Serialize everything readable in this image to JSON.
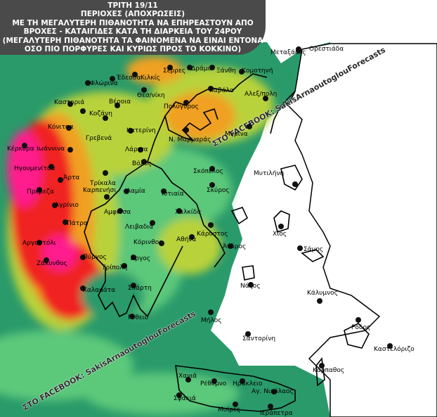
{
  "title": {
    "line1": "ΤΡΙΤΗ 19/11",
    "line2": "ΠΕΡΙΟΧΕΣ (ΑΠΟΧΡΩΣΕΙΣ)",
    "line3": "ΜΕ ΤΗ ΜΕΓΑΛΥΤΕΡΗ ΠΙΘΑΝΟΤΗΤΑ ΝΑ ΕΠΗΡΕΑΣΤΟΥΝ ΑΠΟ",
    "line4": "ΒΡΟΧΕΣ - ΚΑΤΑΙΓΙΔΕΣ ΚΑΤΑ ΤΗ ΔΙΑΡΚΕΙΑ ΤΟΥ 24ΡΟΥ",
    "line5": "(ΜΕΓΑΛΥΤΕΡΗ ΠΙΘΑΝΟΤΗΤΑ ΤΑ ΦΑΙΝΟΜΕΝΑ ΝΑ ΕΙΝΑΙ ΕΝΤΟΝΑ",
    "line6": "ΟΣΟ ΠΙΟ ΠΟΡΦΥΡΕΣ ΚΑΙ ΚΥΡΙΩΣ ΠΡΟΣ ΤΟ ΚΟΚΚΙΝΟ)"
  },
  "watermark": {
    "top": "ΣΤΟ FACEBOOK: SakisArnaoutoglouForecasts",
    "bottom": "ΣΤΟ FACEBOOK: SakisArnaoutoglouForecasts"
  },
  "colors": {
    "sea_base": "#2a9a6a",
    "light_green": "#5cc87a",
    "yellow_green": "#b8d23a",
    "orange": "#f0a020",
    "red": "#f02020",
    "magenta": "#ff1a8c",
    "land_white": "#ffffff"
  },
  "cities": [
    {
      "name": "Μεταξάδες"
    },
    {
      "name": "Ορεστιάδα"
    },
    {
      "name": "Σέρρες"
    },
    {
      "name": "Δράμα"
    },
    {
      "name": "Ξάνθη"
    },
    {
      "name": "Κομοτηνή"
    },
    {
      "name": "Έδεσσα"
    },
    {
      "name": "Κιλκίς"
    },
    {
      "name": "Φλώρινα"
    },
    {
      "name": "Θεσ/νίκη"
    },
    {
      "name": "Καβάλα"
    },
    {
      "name": "Αλεξ/πολη"
    },
    {
      "name": "Καστοριά"
    },
    {
      "name": "Βέροια"
    },
    {
      "name": "Πολύγυρος"
    },
    {
      "name": "Κοζάνη"
    },
    {
      "name": "Κόνιτσα"
    },
    {
      "name": "Γρεβενά"
    },
    {
      "name": "Κατερίνη"
    },
    {
      "name": "Ν. Μαρμαράς"
    },
    {
      "name": "Μύρινα"
    },
    {
      "name": "Κέρκυρα"
    },
    {
      "name": "Ιωάννινα"
    },
    {
      "name": "Λάρισα"
    },
    {
      "name": "Βόλος"
    },
    {
      "name": "Ηγουμενίτσα"
    },
    {
      "name": "Άρτα"
    },
    {
      "name": "Τρίκαλα"
    },
    {
      "name": "Σκόπελος"
    },
    {
      "name": "Μυτιλήνη"
    },
    {
      "name": "Πρέβεζα"
    },
    {
      "name": "Καρπενήσι"
    },
    {
      "name": "Λαμία"
    },
    {
      "name": "Ιστιαία"
    },
    {
      "name": "Σκύρος"
    },
    {
      "name": "Αγρίνιο"
    },
    {
      "name": "Αμφισσα"
    },
    {
      "name": "Χαλκίδα"
    },
    {
      "name": "Πάτρα"
    },
    {
      "name": "Λειβαδιά"
    },
    {
      "name": "Κάρυστος"
    },
    {
      "name": "Χίος"
    },
    {
      "name": "Αργοστόλι"
    },
    {
      "name": "Κόρινθος"
    },
    {
      "name": "Αθήνα"
    },
    {
      "name": "Άνδρος"
    },
    {
      "name": "Ζάκυνθος"
    },
    {
      "name": "Πύργος"
    },
    {
      "name": "Σάμος"
    },
    {
      "name": "Τρίπολη"
    },
    {
      "name": "Άργος"
    },
    {
      "name": "Καλαμάτα"
    },
    {
      "name": "Σπάρτη"
    },
    {
      "name": "Νάξος"
    },
    {
      "name": "Κάλυμνος"
    },
    {
      "name": "Γύθειο"
    },
    {
      "name": "Μήλος"
    },
    {
      "name": "Ρόδος"
    },
    {
      "name": "Σαντορίνη"
    },
    {
      "name": "Καστελόριζο"
    },
    {
      "name": "Κάρπαθος"
    },
    {
      "name": "Χανιά"
    },
    {
      "name": "Ρέθυμνο"
    },
    {
      "name": "Ηράκλειο"
    },
    {
      "name": "Αγ. Νικόλαος"
    },
    {
      "name": "Σφακιά"
    },
    {
      "name": "Μοίρες"
    },
    {
      "name": "Ιεράπετρα"
    }
  ]
}
